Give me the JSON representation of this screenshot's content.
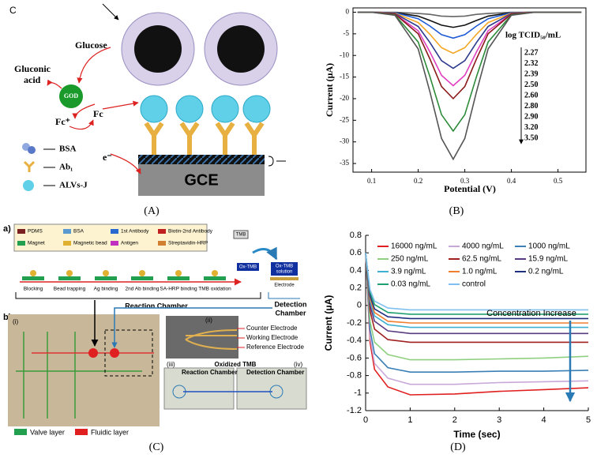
{
  "panel_labels": [
    "(A)",
    "(B)",
    "(C)",
    "(D)"
  ],
  "panel_a": {
    "tag": "C",
    "glucose": "Glucose",
    "gluconic_acid": [
      "Gluconic",
      "acid"
    ],
    "god": "GOD",
    "fc_plus": "Fc⁺",
    "fc": "Fc",
    "electron": "e⁻",
    "legend": [
      "BSA",
      "Ab₁",
      "ALVs-J"
    ],
    "electrode": "GCE"
  },
  "panel_c": {
    "a_tag": "a)",
    "legend": [
      "PDMS",
      "BSA",
      "1st Antibody",
      "Biotin-2nd Antibody",
      "Magnet",
      "Magnetic bead",
      "Antigen",
      "Streptavidin-HRP"
    ],
    "steps": [
      "Blocking",
      "Bead trapping",
      "Ag binding",
      "2nd Ab binding",
      "SA-HRP binding",
      "TMB oxidation"
    ],
    "tmb": "TMB",
    "ox_tmb": "Ox-TMB",
    "ox_tmb_solution": [
      "Ox-TMB",
      "solution"
    ],
    "electrode": "Electrode",
    "reaction_chamber": "Reaction Chamber",
    "detection_chamber": [
      "Detection",
      "Chamber"
    ],
    "b_tag": "b)",
    "photo_tags": [
      "(i)",
      "(ii)",
      "(iii)",
      "(iv)"
    ],
    "electrodes": [
      "Counter Electrode",
      "Working Electrode",
      "Reference Electrode"
    ],
    "inset_labels": [
      "Reaction Chamber",
      "Oxidized TMB",
      "Detection Chamber"
    ],
    "layers": [
      "Valve layer",
      "Fluidic layer"
    ]
  },
  "chart_data": [
    {
      "type": "line",
      "x_label": "Potential (V)",
      "y_label": "Current (μA)",
      "legend_title": "log TCID₅₀/mL",
      "x": [
        0.07,
        0.1,
        0.15,
        0.2,
        0.225,
        0.25,
        0.275,
        0.3,
        0.325,
        0.35,
        0.4,
        0.45,
        0.5,
        0.55
      ],
      "xlim": [
        0.06,
        0.56
      ],
      "ylim": [
        -37,
        1
      ],
      "xticks": [
        0.1,
        0.2,
        0.3,
        0.4,
        0.5
      ],
      "yticks": [
        0,
        -5,
        -10,
        -15,
        -20,
        -25,
        -30,
        -35
      ],
      "series": [
        {
          "name": "2.27",
          "color": "#666666",
          "values": [
            0,
            0,
            0,
            -0.3,
            -0.5,
            -0.9,
            -1,
            -0.9,
            -0.5,
            -0.3,
            0,
            0,
            0,
            0
          ]
        },
        {
          "name": "2.32",
          "color": "#111111",
          "values": [
            0,
            0,
            -0.1,
            -0.9,
            -1.9,
            -3.0,
            -3.5,
            -3.0,
            -1.9,
            -0.9,
            -0.1,
            0,
            0,
            0
          ]
        },
        {
          "name": "2.39",
          "color": "#1e5ad6",
          "values": [
            0,
            0,
            -0.1,
            -1.5,
            -3.2,
            -5.2,
            -6,
            -5.2,
            -3.2,
            -1.5,
            -0.1,
            0,
            0,
            0
          ]
        },
        {
          "name": "2.50",
          "color": "#f5a623",
          "values": [
            0,
            0,
            -0.2,
            -2.4,
            -5.1,
            -8.2,
            -9.5,
            -8.2,
            -5.1,
            -2.4,
            -0.2,
            0,
            0,
            0
          ]
        },
        {
          "name": "2.60",
          "color": "#2b3a8c",
          "values": [
            0,
            0,
            -0.3,
            -3.3,
            -7.0,
            -11.2,
            -13,
            -11.2,
            -7.0,
            -3.3,
            -0.3,
            0,
            0,
            0
          ]
        },
        {
          "name": "2.80",
          "color": "#e040c0",
          "values": [
            0,
            0,
            -0.4,
            -4.3,
            -9.2,
            -14.6,
            -17,
            -14.6,
            -9.2,
            -4.3,
            -0.4,
            0,
            0,
            0
          ]
        },
        {
          "name": "2.90",
          "color": "#8b1a1a",
          "values": [
            0,
            0,
            -0.4,
            -5,
            -10.8,
            -17.2,
            -20,
            -17.2,
            -10.8,
            -5,
            -0.4,
            0,
            0,
            0
          ]
        },
        {
          "name": "3.20",
          "color": "#2e8b3a",
          "values": [
            0,
            0,
            -0.6,
            -6.9,
            -14.9,
            -23.7,
            -27.5,
            -23.7,
            -14.9,
            -6.9,
            -0.6,
            0,
            0,
            0
          ]
        },
        {
          "name": "3.50",
          "color": "#555555",
          "values": [
            0,
            0,
            -0.7,
            -8.5,
            -18.4,
            -29.2,
            -34,
            -29.2,
            -18.4,
            -8.5,
            -0.7,
            0,
            0,
            0
          ]
        }
      ]
    },
    {
      "type": "line",
      "x_label": "Time (sec)",
      "y_label": "Current (μA)",
      "annotation": "Concentration Increase",
      "x": [
        0,
        0.1,
        0.2,
        0.5,
        1,
        2,
        3,
        4,
        5
      ],
      "xlim": [
        0,
        5
      ],
      "ylim": [
        -1.2,
        0.8
      ],
      "xticks": [
        0,
        1,
        2,
        3,
        4,
        5
      ],
      "yticks": [
        0.8,
        0.6,
        0.4,
        0.2,
        0,
        -0.2,
        -0.4,
        -0.6,
        -0.8,
        -1,
        -1.2
      ],
      "series": [
        {
          "name": "16000 ng/mL",
          "color": "#e02020",
          "values": [
            0.6,
            -0.42,
            -0.73,
            -0.93,
            -1.02,
            -1.01,
            -0.98,
            -0.96,
            -0.94
          ]
        },
        {
          "name": "4000 ng/mL",
          "color": "#c8a8d8",
          "values": [
            0.6,
            -0.36,
            -0.66,
            -0.83,
            -0.9,
            -0.9,
            -0.88,
            -0.87,
            -0.86
          ]
        },
        {
          "name": "1000 ng/mL",
          "color": "#3a7fb5",
          "values": [
            0.6,
            -0.28,
            -0.55,
            -0.71,
            -0.76,
            -0.76,
            -0.75,
            -0.75,
            -0.74
          ]
        },
        {
          "name": "250 ng/mL",
          "color": "#8fd080",
          "values": [
            0.6,
            -0.18,
            -0.42,
            -0.56,
            -0.62,
            -0.62,
            -0.61,
            -0.6,
            -0.58
          ]
        },
        {
          "name": "62.5 ng/mL",
          "color": "#a02020",
          "values": [
            0.6,
            -0.06,
            -0.27,
            -0.39,
            -0.42,
            -0.42,
            -0.42,
            -0.42,
            -0.42
          ]
        },
        {
          "name": "15.9 ng/mL",
          "color": "#5a3a80",
          "values": [
            0.6,
            0,
            -0.18,
            -0.29,
            -0.32,
            -0.32,
            -0.32,
            -0.32,
            -0.32
          ]
        },
        {
          "name": "3.9 ng/mL",
          "color": "#40b0d0",
          "values": [
            0.6,
            0.05,
            -0.12,
            -0.22,
            -0.25,
            -0.25,
            -0.25,
            -0.25,
            -0.25
          ]
        },
        {
          "name": "1.0 ng/mL",
          "color": "#f08030",
          "values": [
            0.6,
            0.08,
            -0.08,
            -0.18,
            -0.2,
            -0.2,
            -0.2,
            -0.2,
            -0.2
          ]
        },
        {
          "name": "0.2 ng/mL",
          "color": "#203080",
          "values": [
            0.6,
            0.11,
            -0.04,
            -0.13,
            -0.15,
            -0.15,
            -0.15,
            -0.15,
            -0.15
          ]
        },
        {
          "name": "0.03 ng/mL",
          "color": "#20a070",
          "values": [
            0.6,
            0.15,
            0.01,
            -0.08,
            -0.1,
            -0.1,
            -0.1,
            -0.1,
            -0.1
          ]
        },
        {
          "name": "control",
          "color": "#80c0f0",
          "values": [
            0.6,
            0.18,
            0.05,
            -0.03,
            -0.05,
            -0.05,
            -0.05,
            -0.05,
            -0.05
          ]
        }
      ]
    }
  ]
}
